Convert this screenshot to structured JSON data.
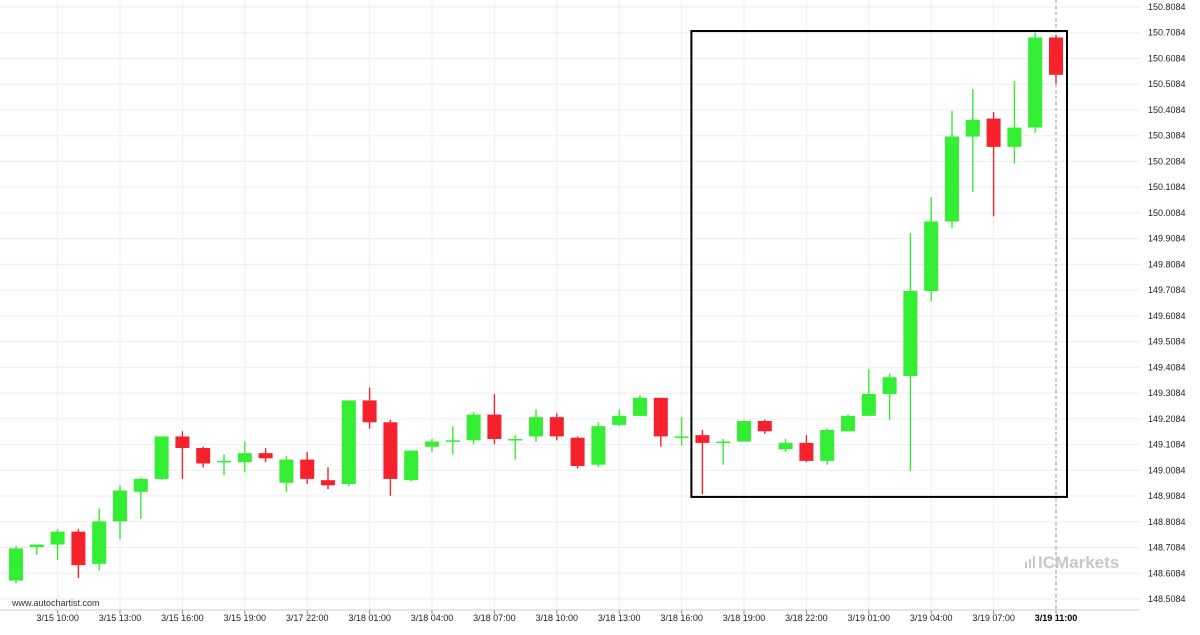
{
  "source": "www.autochartist.com",
  "brand": "ICMarkets",
  "colors": {
    "up": "#33ee33",
    "down": "#f5222d",
    "grid": "#eeeeee",
    "frame": "#000000",
    "brand": "#c9c9c9"
  },
  "chart_data": {
    "type": "candlestick",
    "ylim": [
      148.45,
      150.81
    ],
    "y_ticks": [
      "150.8084",
      "150.7084",
      "150.6084",
      "150.5084",
      "150.4084",
      "150.3084",
      "150.2084",
      "150.1084",
      "150.0084",
      "149.9084",
      "149.8084",
      "149.7084",
      "149.6084",
      "149.5084",
      "149.4084",
      "149.3084",
      "149.2084",
      "149.1084",
      "149.0084",
      "148.9084",
      "148.8084",
      "148.7084",
      "148.6084",
      "148.5084"
    ],
    "x_ticks": [
      {
        "label": "3/15 10:00",
        "index": 2
      },
      {
        "label": "3/15 13:00",
        "index": 5
      },
      {
        "label": "3/15 16:00",
        "index": 8
      },
      {
        "label": "3/15 19:00",
        "index": 11
      },
      {
        "label": "3/17 22:00",
        "index": 14
      },
      {
        "label": "3/18 01:00",
        "index": 17
      },
      {
        "label": "3/18 04:00",
        "index": 20
      },
      {
        "label": "3/18 07:00",
        "index": 23
      },
      {
        "label": "3/18 10:00",
        "index": 26
      },
      {
        "label": "3/18 13:00",
        "index": 29
      },
      {
        "label": "3/18 16:00",
        "index": 32
      },
      {
        "label": "3/18 19:00",
        "index": 35
      },
      {
        "label": "3/18 22:00",
        "index": 38
      },
      {
        "label": "3/19 01:00",
        "index": 41
      },
      {
        "label": "3/19 04:00",
        "index": 44
      },
      {
        "label": "3/19 07:00",
        "index": 47
      },
      {
        "label": "3/19 11:00",
        "index": 50,
        "highlight": true
      }
    ],
    "candles": [
      {
        "o": 148.58,
        "h": 148.715,
        "l": 148.57,
        "c": 148.705
      },
      {
        "o": 148.71,
        "h": 148.72,
        "l": 148.68,
        "c": 148.72
      },
      {
        "o": 148.72,
        "h": 148.78,
        "l": 148.66,
        "c": 148.77
      },
      {
        "o": 148.77,
        "h": 148.78,
        "l": 148.59,
        "c": 148.64
      },
      {
        "o": 148.645,
        "h": 148.86,
        "l": 148.62,
        "c": 148.81
      },
      {
        "o": 148.81,
        "h": 148.95,
        "l": 148.74,
        "c": 148.93
      },
      {
        "o": 148.925,
        "h": 148.98,
        "l": 148.82,
        "c": 148.975
      },
      {
        "o": 148.975,
        "h": 149.14,
        "l": 148.97,
        "c": 149.14
      },
      {
        "o": 149.14,
        "h": 149.16,
        "l": 148.975,
        "c": 149.095
      },
      {
        "o": 149.095,
        "h": 149.1,
        "l": 149.02,
        "c": 149.035
      },
      {
        "o": 149.04,
        "h": 149.07,
        "l": 148.99,
        "c": 149.045
      },
      {
        "o": 149.04,
        "h": 149.12,
        "l": 149.0,
        "c": 149.075
      },
      {
        "o": 149.075,
        "h": 149.095,
        "l": 149.04,
        "c": 149.055
      },
      {
        "o": 148.96,
        "h": 149.065,
        "l": 148.925,
        "c": 149.05
      },
      {
        "o": 149.05,
        "h": 149.08,
        "l": 148.955,
        "c": 148.975
      },
      {
        "o": 148.97,
        "h": 149.02,
        "l": 148.935,
        "c": 148.95
      },
      {
        "o": 148.955,
        "h": 149.28,
        "l": 148.945,
        "c": 149.28
      },
      {
        "o": 149.28,
        "h": 149.33,
        "l": 149.17,
        "c": 149.195
      },
      {
        "o": 149.195,
        "h": 149.205,
        "l": 148.91,
        "c": 148.975
      },
      {
        "o": 148.97,
        "h": 149.085,
        "l": 148.965,
        "c": 149.085
      },
      {
        "o": 149.1,
        "h": 149.13,
        "l": 149.08,
        "c": 149.12
      },
      {
        "o": 149.12,
        "h": 149.18,
        "l": 149.07,
        "c": 149.125
      },
      {
        "o": 149.125,
        "h": 149.235,
        "l": 149.11,
        "c": 149.225
      },
      {
        "o": 149.225,
        "h": 149.305,
        "l": 149.11,
        "c": 149.13
      },
      {
        "o": 149.125,
        "h": 149.145,
        "l": 149.05,
        "c": 149.13
      },
      {
        "o": 149.14,
        "h": 149.245,
        "l": 149.12,
        "c": 149.215
      },
      {
        "o": 149.215,
        "h": 149.23,
        "l": 149.125,
        "c": 149.14
      },
      {
        "o": 149.135,
        "h": 149.14,
        "l": 149.015,
        "c": 149.025
      },
      {
        "o": 149.03,
        "h": 149.195,
        "l": 149.02,
        "c": 149.18
      },
      {
        "o": 149.185,
        "h": 149.245,
        "l": 149.18,
        "c": 149.22
      },
      {
        "o": 149.22,
        "h": 149.3,
        "l": 149.22,
        "c": 149.29
      },
      {
        "o": 149.29,
        "h": 149.29,
        "l": 149.1,
        "c": 149.14
      },
      {
        "o": 149.14,
        "h": 149.215,
        "l": 149.105,
        "c": 149.14
      },
      {
        "o": 149.145,
        "h": 149.165,
        "l": 148.915,
        "c": 149.115
      },
      {
        "o": 149.12,
        "h": 149.13,
        "l": 149.03,
        "c": 149.12
      },
      {
        "o": 149.12,
        "h": 149.2,
        "l": 149.12,
        "c": 149.2
      },
      {
        "o": 149.2,
        "h": 149.205,
        "l": 149.15,
        "c": 149.16
      },
      {
        "o": 149.09,
        "h": 149.13,
        "l": 149.08,
        "c": 149.115
      },
      {
        "o": 149.115,
        "h": 149.145,
        "l": 149.04,
        "c": 149.045
      },
      {
        "o": 149.045,
        "h": 149.17,
        "l": 149.03,
        "c": 149.165
      },
      {
        "o": 149.16,
        "h": 149.225,
        "l": 149.16,
        "c": 149.22
      },
      {
        "o": 149.22,
        "h": 149.4,
        "l": 149.22,
        "c": 149.305
      },
      {
        "o": 149.305,
        "h": 149.385,
        "l": 149.205,
        "c": 149.37
      },
      {
        "o": 149.375,
        "h": 149.93,
        "l": 149.005,
        "c": 149.705
      },
      {
        "o": 149.705,
        "h": 150.07,
        "l": 149.665,
        "c": 149.975
      },
      {
        "o": 149.975,
        "h": 150.405,
        "l": 149.95,
        "c": 150.305
      },
      {
        "o": 150.305,
        "h": 150.49,
        "l": 150.09,
        "c": 150.37
      },
      {
        "o": 150.375,
        "h": 150.4,
        "l": 149.995,
        "c": 150.265
      },
      {
        "o": 150.265,
        "h": 150.52,
        "l": 150.2,
        "c": 150.34
      },
      {
        "o": 150.34,
        "h": 150.71,
        "l": 150.32,
        "c": 150.69
      },
      {
        "o": 150.69,
        "h": 150.7,
        "l": 150.51,
        "c": 150.545
      }
    ],
    "pattern_box": {
      "from_index": 33,
      "to_index": 50,
      "low": 148.905,
      "high": 150.715
    },
    "current_index": 50
  }
}
